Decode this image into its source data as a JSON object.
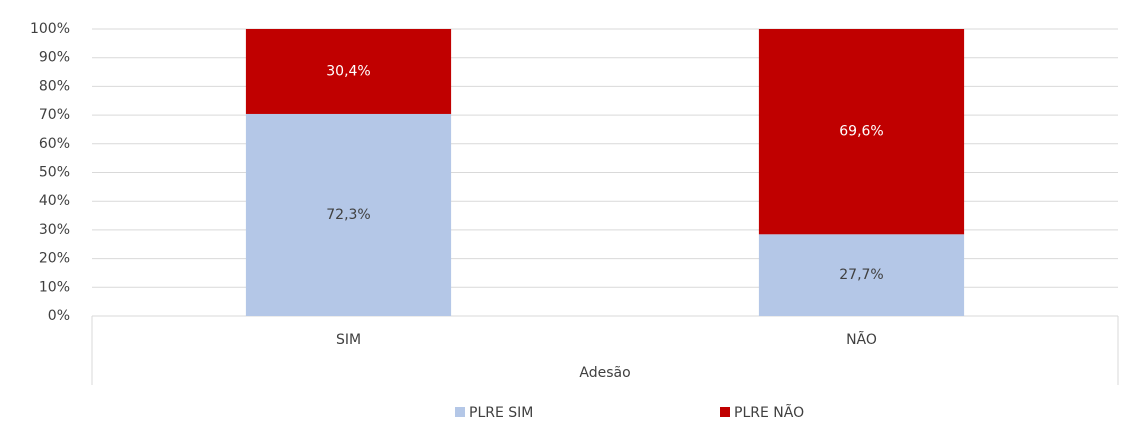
{
  "chart_data": {
    "type": "bar",
    "stacking": "percent",
    "categories": [
      "SIM",
      "NÃO"
    ],
    "series": [
      {
        "name": "PLRE SIM",
        "color": "#b4c7e7",
        "values": [
          72.3,
          27.7
        ],
        "value_labels": [
          "72,3%",
          "27,7%"
        ]
      },
      {
        "name": "PLRE NÃO",
        "color": "#c00000",
        "values": [
          30.4,
          69.6
        ],
        "value_labels": [
          "30,4%",
          "69,6%"
        ]
      }
    ],
    "x_label": "Adesão",
    "ylim": [
      0,
      100
    ],
    "yticks": [
      {
        "value": 0,
        "label": "0%"
      },
      {
        "value": 10,
        "label": "10%"
      },
      {
        "value": 20,
        "label": "20%"
      },
      {
        "value": 30,
        "label": "30%"
      },
      {
        "value": 40,
        "label": "40%"
      },
      {
        "value": 50,
        "label": "50%"
      },
      {
        "value": 60,
        "label": "60%"
      },
      {
        "value": 70,
        "label": "70%"
      },
      {
        "value": 80,
        "label": "80%"
      },
      {
        "value": 90,
        "label": "90%"
      },
      {
        "value": 100,
        "label": "100%"
      }
    ],
    "grid": true,
    "legend": "bottom"
  }
}
